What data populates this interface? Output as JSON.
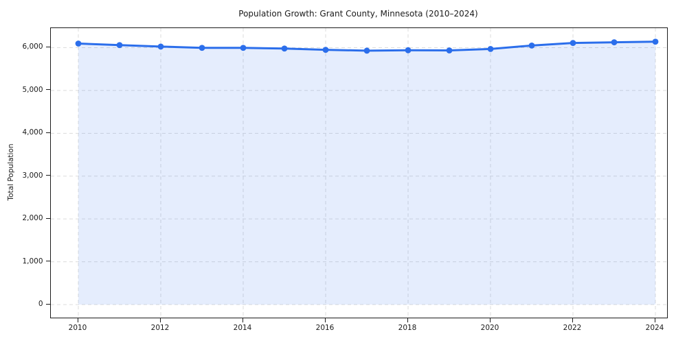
{
  "chart_data": {
    "type": "area",
    "title": "Population Growth: Grant County, Minnesota (2010–2024)",
    "xlabel": "",
    "ylabel": "Total Population",
    "series_name": "Total Population",
    "x": [
      2010,
      2011,
      2012,
      2013,
      2014,
      2015,
      2016,
      2017,
      2018,
      2019,
      2020,
      2021,
      2022,
      2023,
      2024
    ],
    "values": [
      6095,
      6060,
      6025,
      5995,
      5995,
      5980,
      5950,
      5930,
      5940,
      5935,
      5970,
      6050,
      6110,
      6125,
      6140
    ],
    "xlim": [
      2009.333,
      2024.283
    ],
    "ylim": [
      -304,
      6456
    ],
    "grid": true,
    "grid_style": "dashed",
    "legend": "none",
    "xticks": {
      "values": [
        2010,
        2012,
        2014,
        2016,
        2018,
        2020,
        2022,
        2024
      ],
      "labels": [
        "2010",
        "2012",
        "2014",
        "2016",
        "2018",
        "2020",
        "2022",
        "2024"
      ]
    },
    "yticks": {
      "values": [
        0,
        1000,
        2000,
        3000,
        4000,
        5000,
        6000
      ],
      "labels": [
        "0",
        "1,000",
        "2,000",
        "3,000",
        "4,000",
        "5,000",
        "6,000"
      ]
    },
    "colors": {
      "line": "#2b6eeb",
      "marker": "#2b6eeb",
      "fill": "rgba(43,110,235,0.12)",
      "grid": "#dcdcdc",
      "spine": "#1a1a1a",
      "text": "#1a1a1a",
      "background": "#ffffff"
    }
  }
}
